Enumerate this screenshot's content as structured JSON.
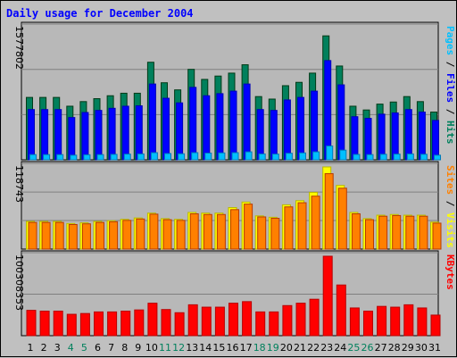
{
  "chart_data": {
    "type": "bar",
    "title": "Daily usage for December 2004",
    "categories": [
      "1",
      "2",
      "3",
      "4",
      "5",
      "6",
      "7",
      "8",
      "9",
      "10",
      "11",
      "12",
      "13",
      "14",
      "15",
      "16",
      "17",
      "18",
      "19",
      "20",
      "21",
      "22",
      "23",
      "24",
      "25",
      "26",
      "27",
      "28",
      "29",
      "30",
      "31"
    ],
    "weekend_days": [
      "4",
      "5",
      "11",
      "12",
      "18",
      "19",
      "25",
      "26"
    ],
    "panels": [
      {
        "name": "top",
        "ymax_label": "1577802",
        "ymax": 1577802,
        "series": [
          {
            "name": "Hits",
            "color": "#00805c",
            "values": [
              745000,
              745000,
              745000,
              640000,
              695000,
              730000,
              765000,
              795000,
              795000,
              1165000,
              920000,
              835000,
              1080000,
              960000,
              1000000,
              1035000,
              1135000,
              755000,
              725000,
              885000,
              925000,
              1035000,
              1480000,
              1120000,
              640000,
              595000,
              665000,
              690000,
              755000,
              695000,
              570000
            ]
          },
          {
            "name": "Files",
            "color": "#0000ff",
            "values": [
              600000,
              600000,
              600000,
              505000,
              565000,
              590000,
              615000,
              640000,
              645000,
              905000,
              735000,
              680000,
              865000,
              765000,
              790000,
              820000,
              905000,
              600000,
              590000,
              715000,
              745000,
              820000,
              1185000,
              895000,
              515000,
              495000,
              545000,
              560000,
              600000,
              570000,
              470000
            ]
          },
          {
            "name": "Pages",
            "color": "#00c0ff",
            "values": [
              62000,
              62000,
              62000,
              55000,
              60000,
              62000,
              65000,
              68000,
              70000,
              85000,
              75000,
              72000,
              85000,
              80000,
              82000,
              85000,
              95000,
              70000,
              68000,
              78000,
              82000,
              95000,
              165000,
              115000,
              64000,
              62000,
              66000,
              68000,
              70000,
              66000,
              55000
            ]
          }
        ],
        "side_labels": [
          {
            "text": "Pages",
            "color": "#00c0ff"
          },
          {
            "text": " / ",
            "color": "#000000"
          },
          {
            "text": "Files",
            "color": "#0000ff"
          },
          {
            "text": " / ",
            "color": "#000000"
          },
          {
            "text": "Hits",
            "color": "#00805c"
          }
        ]
      },
      {
        "name": "mid",
        "ymax_label": "118743",
        "ymax": 118743,
        "series": [
          {
            "name": "Visits",
            "color": "#ffff00",
            "values": [
              40000,
              40000,
              40000,
              37000,
              38000,
              40000,
              41000,
              43000,
              45000,
              52000,
              44000,
              43000,
              53000,
              52000,
              52000,
              60000,
              68000,
              48000,
              46000,
              64000,
              70000,
              82000,
              118743,
              92000,
              53000,
              44000,
              49000,
              50000,
              49000,
              49000,
              39000
            ]
          },
          {
            "name": "Sites",
            "color": "#ff8000",
            "values": [
              38500,
              38500,
              38500,
              35500,
              36500,
              38500,
              39500,
              41500,
              43500,
              50500,
              42500,
              41500,
              51000,
              50000,
              50000,
              57000,
              65000,
              46500,
              44500,
              61000,
              67000,
              76500,
              109000,
              88000,
              51000,
              42500,
              47500,
              48500,
              47500,
              47500,
              37500
            ]
          }
        ],
        "side_labels": [
          {
            "text": "Sites",
            "color": "#ff8000"
          },
          {
            "text": " / ",
            "color": "#000000"
          },
          {
            "text": "Visits",
            "color": "#ffff00"
          }
        ]
      },
      {
        "name": "bot",
        "ymax_label": "100308353",
        "ymax": 100308353,
        "series": [
          {
            "name": "KBytes",
            "color": "#ff0000",
            "values": [
              32000000,
              31000000,
              31000000,
              27000000,
              28000000,
              30000000,
              30000000,
              31000000,
              32500000,
              41000000,
              33000000,
              29000000,
              39000000,
              36000000,
              36000000,
              41000000,
              43000000,
              30000000,
              30000000,
              38000000,
              41000000,
              46000000,
              100308353,
              64000000,
              35000000,
              31000000,
              37000000,
              36000000,
              39000000,
              35000000,
              26000000
            ]
          }
        ],
        "side_labels": [
          {
            "text": "KBytes",
            "color": "#ff0000"
          }
        ]
      }
    ],
    "grid": true,
    "legend": "vertical labels on right side"
  }
}
